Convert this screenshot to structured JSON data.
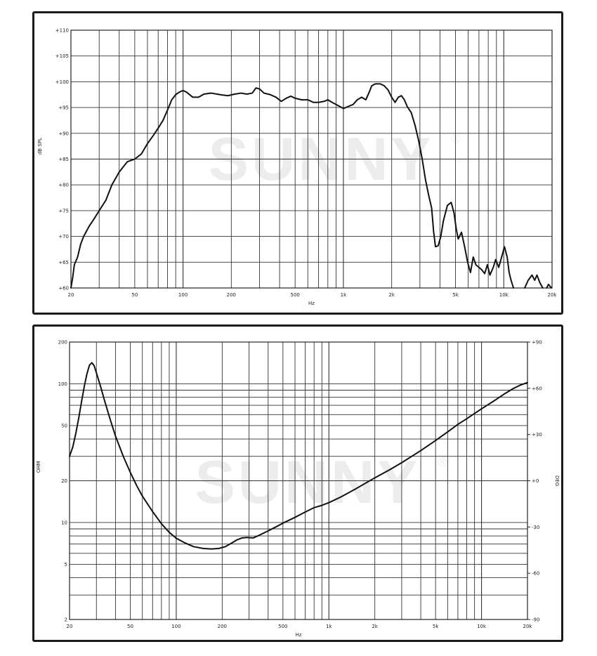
{
  "charts": [
    {
      "id": "spl",
      "type": "line",
      "x_scale": "log",
      "xlim": [
        20,
        20000
      ],
      "ylim": [
        60,
        110
      ],
      "xlabel": "Hz",
      "ylabel": "dB SPL",
      "watermark": "SUNNY",
      "watermark_mark": "®",
      "x_tick_labels": [
        {
          "v": 20,
          "t": "20"
        },
        {
          "v": 50,
          "t": "50"
        },
        {
          "v": 100,
          "t": "100"
        },
        {
          "v": 200,
          "t": "200"
        },
        {
          "v": 500,
          "t": "500"
        },
        {
          "v": 1000,
          "t": "1k"
        },
        {
          "v": 2000,
          "t": "2k"
        },
        {
          "v": 5000,
          "t": "5k"
        },
        {
          "v": 10000,
          "t": "10k"
        },
        {
          "v": 20000,
          "t": "20k"
        }
      ],
      "y_tick_labels": [
        {
          "v": 60,
          "t": "+60"
        },
        {
          "v": 65,
          "t": "+65"
        },
        {
          "v": 70,
          "t": "+70"
        },
        {
          "v": 75,
          "t": "+75"
        },
        {
          "v": 80,
          "t": "+80"
        },
        {
          "v": 85,
          "t": "+85"
        },
        {
          "v": 90,
          "t": "+90"
        },
        {
          "v": 95,
          "t": "+95"
        },
        {
          "v": 100,
          "t": "+100"
        },
        {
          "v": 105,
          "t": "+105"
        },
        {
          "v": 110,
          "t": "+110"
        }
      ],
      "series": [
        {
          "stroke": "#111111",
          "segments": [
            [
              [
                20,
                60
              ],
              [
                20.5,
                62
              ],
              [
                21,
                64.5
              ],
              [
                22,
                66
              ],
              [
                23,
                68.5
              ],
              [
                24,
                70
              ],
              [
                26,
                72
              ],
              [
                28,
                73.5
              ],
              [
                30,
                75
              ],
              [
                33,
                77
              ],
              [
                36,
                80
              ],
              [
                40,
                82.5
              ],
              [
                45,
                84.5
              ],
              [
                50,
                85
              ],
              [
                55,
                86
              ],
              [
                60,
                88
              ],
              [
                65,
                89.5
              ],
              [
                70,
                91
              ],
              [
                75,
                92.5
              ],
              [
                80,
                94.5
              ],
              [
                85,
                96.5
              ],
              [
                90,
                97.5
              ],
              [
                95,
                98
              ],
              [
                100,
                98.3
              ],
              [
                105,
                98
              ],
              [
                115,
                97
              ],
              [
                125,
                97
              ],
              [
                135,
                97.6
              ],
              [
                150,
                97.8
              ],
              [
                170,
                97.5
              ],
              [
                190,
                97.3
              ],
              [
                210,
                97.6
              ],
              [
                230,
                97.8
              ],
              [
                250,
                97.6
              ],
              [
                270,
                97.8
              ],
              [
                285,
                98.8
              ],
              [
                300,
                98.6
              ],
              [
                320,
                97.8
              ],
              [
                350,
                97.5
              ],
              [
                380,
                97
              ],
              [
                410,
                96.2
              ],
              [
                440,
                96.8
              ],
              [
                470,
                97.2
              ],
              [
                500,
                96.8
              ],
              [
                550,
                96.5
              ],
              [
                600,
                96.5
              ],
              [
                650,
                96
              ],
              [
                700,
                96
              ],
              [
                760,
                96.2
              ],
              [
                800,
                96.5
              ],
              [
                850,
                96
              ],
              [
                900,
                95.6
              ],
              [
                950,
                95.2
              ],
              [
                1000,
                94.8
              ],
              [
                1070,
                95.2
              ],
              [
                1150,
                95.6
              ],
              [
                1220,
                96.5
              ],
              [
                1300,
                97
              ],
              [
                1380,
                96.5
              ],
              [
                1450,
                98
              ],
              [
                1500,
                99.2
              ],
              [
                1580,
                99.6
              ],
              [
                1700,
                99.6
              ],
              [
                1800,
                99.2
              ],
              [
                1900,
                98.4
              ],
              [
                2000,
                97
              ],
              [
                2100,
                96
              ],
              [
                2200,
                97
              ],
              [
                2300,
                97.3
              ],
              [
                2400,
                96.5
              ],
              [
                2500,
                95.2
              ],
              [
                2650,
                94
              ],
              [
                2800,
                91.5
              ],
              [
                2950,
                88.5
              ],
              [
                3100,
                85
              ],
              [
                3250,
                81
              ],
              [
                3400,
                78
              ],
              [
                3550,
                75.5
              ],
              [
                3650,
                71
              ],
              [
                3750,
                68
              ],
              [
                3900,
                68.2
              ],
              [
                4050,
                70
              ],
              [
                4200,
                73
              ],
              [
                4450,
                76
              ],
              [
                4700,
                76.6
              ],
              [
                4900,
                74.5
              ],
              [
                5050,
                71.5
              ],
              [
                5200,
                69.5
              ],
              [
                5450,
                70.8
              ],
              [
                5700,
                68
              ],
              [
                5950,
                65
              ],
              [
                6200,
                63
              ],
              [
                6450,
                66
              ],
              [
                6700,
                64.5
              ],
              [
                7000,
                64
              ],
              [
                7300,
                63.5
              ],
              [
                7600,
                62.8
              ],
              [
                7900,
                64.5
              ],
              [
                8200,
                62.5
              ],
              [
                8600,
                64
              ],
              [
                8900,
                65.5
              ],
              [
                9300,
                64
              ],
              [
                9700,
                66
              ],
              [
                10100,
                68
              ],
              [
                10500,
                66
              ],
              [
                10800,
                63
              ],
              [
                11100,
                61.5
              ],
              [
                11500,
                60
              ]
            ],
            [
              [
                13500,
                60
              ],
              [
                14200,
                61.5
              ],
              [
                15000,
                62.5
              ],
              [
                15600,
                61.5
              ],
              [
                16100,
                62.5
              ],
              [
                16800,
                61
              ],
              [
                17500,
                60
              ]
            ],
            [
              [
                18500,
                60
              ],
              [
                19000,
                60.7
              ],
              [
                19800,
                60
              ]
            ]
          ]
        }
      ]
    },
    {
      "id": "impedance",
      "type": "line",
      "x_scale": "log",
      "y_scale": "log",
      "xlim": [
        20,
        20000
      ],
      "ylim": [
        2,
        200
      ],
      "y2lim": [
        -90,
        90
      ],
      "xlabel": "Hz",
      "ylabel": "OHM",
      "y2label": "DEG",
      "watermark": "SUNNY",
      "watermark_mark": "®",
      "x_tick_labels": [
        {
          "v": 20,
          "t": "20"
        },
        {
          "v": 50,
          "t": "50"
        },
        {
          "v": 100,
          "t": "100"
        },
        {
          "v": 200,
          "t": "200"
        },
        {
          "v": 500,
          "t": "500"
        },
        {
          "v": 1000,
          "t": "1k"
        },
        {
          "v": 2000,
          "t": "2k"
        },
        {
          "v": 5000,
          "t": "5k"
        },
        {
          "v": 10000,
          "t": "10k"
        },
        {
          "v": 20000,
          "t": "20k"
        }
      ],
      "y_tick_labels": [
        {
          "v": 2,
          "t": "2"
        },
        {
          "v": 5,
          "t": "5"
        },
        {
          "v": 10,
          "t": "10"
        },
        {
          "v": 20,
          "t": "20"
        },
        {
          "v": 50,
          "t": "50"
        },
        {
          "v": 100,
          "t": "100"
        },
        {
          "v": 200,
          "t": "200"
        }
      ],
      "y2_tick_labels": [
        {
          "v": 90,
          "t": "+90"
        },
        {
          "v": 60,
          "t": "+60"
        },
        {
          "v": 30,
          "t": "+30"
        },
        {
          "v": 0,
          "t": "+0"
        },
        {
          "v": -30,
          "t": "-30"
        },
        {
          "v": -60,
          "t": "-60"
        },
        {
          "v": -90,
          "t": "-90"
        }
      ],
      "series": [
        {
          "stroke": "#111111",
          "segments": [
            [
              [
                20,
                30
              ],
              [
                21,
                35
              ],
              [
                22,
                44
              ],
              [
                23,
                57
              ],
              [
                24,
                75
              ],
              [
                25,
                96
              ],
              [
                26,
                118
              ],
              [
                27,
                136
              ],
              [
                28,
                142
              ],
              [
                29,
                135
              ],
              [
                30,
                120
              ],
              [
                32,
                95
              ],
              [
                34,
                75
              ],
              [
                37,
                55
              ],
              [
                40,
                42
              ],
              [
                45,
                30
              ],
              [
                50,
                23
              ],
              [
                55,
                18.5
              ],
              [
                60,
                15.5
              ],
              [
                70,
                12
              ],
              [
                80,
                9.8
              ],
              [
                90,
                8.5
              ],
              [
                100,
                7.7
              ],
              [
                115,
                7.1
              ],
              [
                130,
                6.7
              ],
              [
                150,
                6.5
              ],
              [
                170,
                6.45
              ],
              [
                190,
                6.5
              ],
              [
                210,
                6.7
              ],
              [
                230,
                7.1
              ],
              [
                250,
                7.5
              ],
              [
                270,
                7.75
              ],
              [
                290,
                7.8
              ],
              [
                320,
                7.75
              ],
              [
                350,
                8.1
              ],
              [
                400,
                8.7
              ],
              [
                450,
                9.3
              ],
              [
                500,
                9.9
              ],
              [
                600,
                10.9
              ],
              [
                700,
                11.9
              ],
              [
                800,
                12.8
              ],
              [
                900,
                13.3
              ],
              [
                1000,
                13.9
              ],
              [
                1200,
                15.3
              ],
              [
                1500,
                17.5
              ],
              [
                2000,
                21
              ],
              [
                2500,
                24
              ],
              [
                3000,
                27
              ],
              [
                4000,
                33
              ],
              [
                5000,
                39
              ],
              [
                6000,
                45
              ],
              [
                7000,
                51
              ],
              [
                8000,
                56
              ],
              [
                10000,
                66
              ],
              [
                12000,
                75
              ],
              [
                14000,
                84
              ],
              [
                16000,
                92
              ],
              [
                18000,
                98
              ],
              [
                20000,
                102
              ]
            ]
          ]
        }
      ]
    }
  ]
}
